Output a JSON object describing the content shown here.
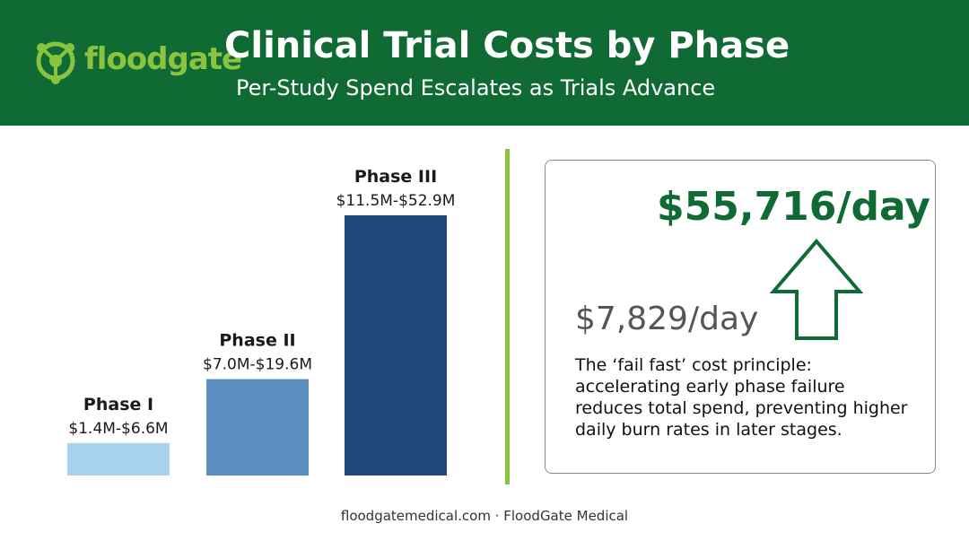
{
  "brand": {
    "logo_text": "floodgate",
    "colors": {
      "header": "#0f6b33",
      "accent": "#8ac43f",
      "rate_highlight": "#0f6b33"
    }
  },
  "header": {
    "title": "Clinical Trial Costs by Phase",
    "subtitle": "Per-Study Spend Escalates as Trials Advance"
  },
  "chart_data": {
    "type": "bar",
    "categories": [
      "Phase I",
      "Phase II",
      "Phase III"
    ],
    "values": [
      6.6,
      19.6,
      52.9
    ],
    "range_labels": [
      "$1.4M-$6.6M",
      "$7.0M-$19.6M",
      "$11.5M-$52.9M"
    ],
    "bar_colors": [
      "#a8d3ef",
      "#5c8fbf",
      "#21477a"
    ],
    "title": "",
    "xlabel": "",
    "ylabel": "",
    "grid": false
  },
  "callout": {
    "late_rate": "$55,716/day",
    "early_rate": "$7,829/day",
    "arrow_icon": "up-arrow-icon",
    "description": "The ‘fail fast’ cost principle: accelerating early phase failure reduces total spend, preventing higher daily burn rates in later stages."
  },
  "footer": {
    "text": "floodgatemedical.com · FloodGate Medical"
  }
}
